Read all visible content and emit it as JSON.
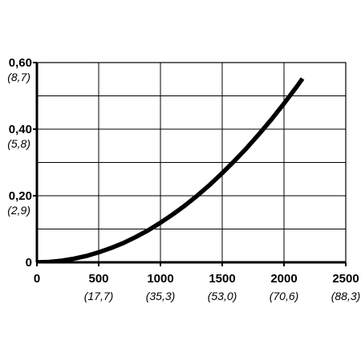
{
  "chart_data": {
    "type": "line",
    "title": "",
    "xlabel": "",
    "ylabel": "",
    "xlim": [
      0,
      2500
    ],
    "ylim": [
      0,
      0.6
    ],
    "grid": true,
    "x_ticks": [
      {
        "value": 0,
        "label": "0",
        "sublabel": ""
      },
      {
        "value": 500,
        "label": "500",
        "sublabel": "(17,7)"
      },
      {
        "value": 1000,
        "label": "1000",
        "sublabel": "(35,3)"
      },
      {
        "value": 1500,
        "label": "1500",
        "sublabel": "(53,0)"
      },
      {
        "value": 2000,
        "label": "2000",
        "sublabel": "(70,6)"
      },
      {
        "value": 2500,
        "label": "2500",
        "sublabel": "(88,3)"
      }
    ],
    "y_ticks": [
      {
        "value": 0,
        "label": "0",
        "sublabel": ""
      },
      {
        "value": 0.2,
        "label": "0,20",
        "sublabel": "(2,9)"
      },
      {
        "value": 0.4,
        "label": "0,40",
        "sublabel": "(5,8)"
      },
      {
        "value": 0.6,
        "label": "0,60",
        "sublabel": "(8,7)"
      }
    ],
    "series": [
      {
        "color": "#000000",
        "x": [
          0,
          100,
          200,
          300,
          400,
          500,
          600,
          700,
          800,
          900,
          1000,
          1100,
          1200,
          1300,
          1400,
          1500,
          1600,
          1700,
          1800,
          1900,
          2000,
          2100,
          2150
        ],
        "y": [
          0,
          0.0012,
          0.005,
          0.011,
          0.019,
          0.03,
          0.043,
          0.058,
          0.076,
          0.096,
          0.119,
          0.144,
          0.171,
          0.201,
          0.233,
          0.268,
          0.305,
          0.344,
          0.386,
          0.43,
          0.477,
          0.526,
          0.552
        ]
      }
    ]
  }
}
